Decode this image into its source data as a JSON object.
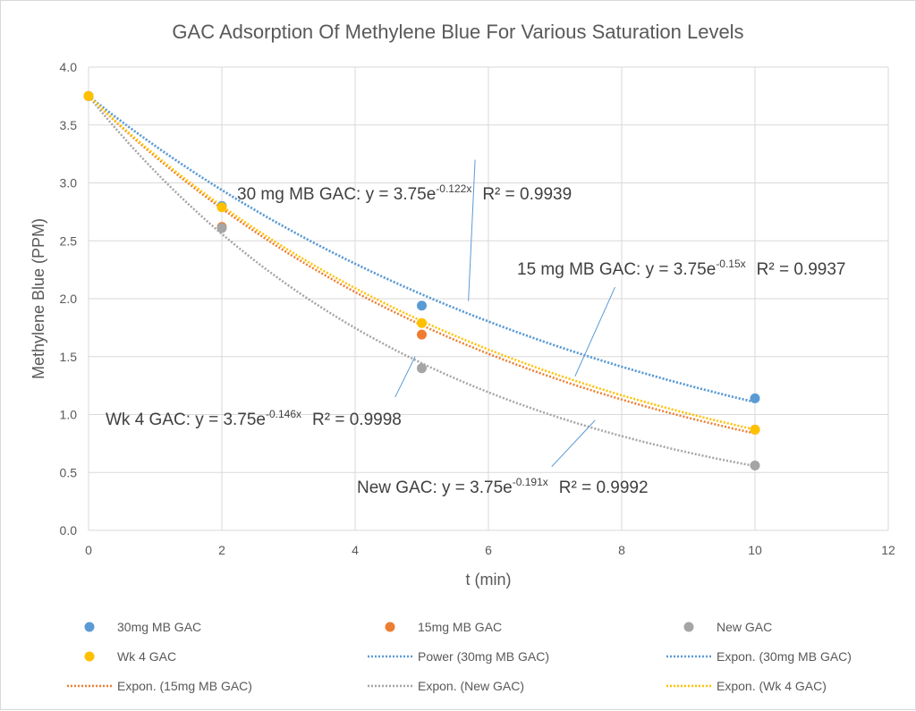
{
  "chart_data": {
    "type": "scatter",
    "title": "GAC Adsorption Of Methylene Blue For Various Saturation Levels",
    "xlabel": "t (min)",
    "ylabel": "Methylene Blue (PPM)",
    "xlim": [
      0,
      12
    ],
    "ylim": [
      0,
      4
    ],
    "x_ticks": [
      "0",
      "2",
      "4",
      "6",
      "8",
      "10",
      "12"
    ],
    "y_ticks": [
      "0.0",
      "0.5",
      "1.0",
      "1.5",
      "2.0",
      "2.5",
      "3.0",
      "3.5",
      "4.0"
    ],
    "grid": true,
    "legend_position": "bottom",
    "series": [
      {
        "name": "30mg MB GAC",
        "color": "#5B9BD5",
        "x": [
          0,
          2,
          5,
          10
        ],
        "y": [
          3.75,
          2.8,
          1.94,
          1.14
        ]
      },
      {
        "name": "15mg MB GAC",
        "color": "#ED7D31",
        "x": [
          0,
          2,
          5,
          10
        ],
        "y": [
          3.75,
          2.62,
          1.69,
          0.87
        ]
      },
      {
        "name": "New GAC",
        "color": "#A5A5A5",
        "x": [
          0,
          2,
          5,
          10
        ],
        "y": [
          3.75,
          2.61,
          1.4,
          0.56
        ]
      },
      {
        "name": "Wk 4 GAC",
        "color": "#FFC000",
        "x": [
          0,
          2,
          5,
          10
        ],
        "y": [
          3.75,
          2.79,
          1.79,
          0.87
        ]
      }
    ],
    "trendlines": [
      {
        "name": "Power (30mg MB GAC)",
        "color": "#5B9BD5",
        "a": 3.75,
        "b": -0.122
      },
      {
        "name": "Expon. (30mg MB GAC)",
        "color": "#5B9BD5",
        "a": 3.75,
        "b": -0.122
      },
      {
        "name": "Expon. (15mg MB GAC)",
        "color": "#ED7D31",
        "a": 3.75,
        "b": -0.15
      },
      {
        "name": "Expon. (New GAC)",
        "color": "#A5A5A5",
        "a": 3.75,
        "b": -0.191
      },
      {
        "name": "Expon. (Wk 4 GAC)",
        "color": "#FFC000",
        "a": 3.75,
        "b": -0.146
      }
    ],
    "annotations": [
      {
        "prefix": "30 mg MB GAC:  y = 3.75e",
        "exp": "-0.122x",
        "r2": "R² = 0.9939"
      },
      {
        "prefix": "15 mg MB GAC:  y = 3.75e",
        "exp": "-0.15x",
        "r2": "R² = 0.9937"
      },
      {
        "prefix": "Wk 4 GAC:  y = 3.75e",
        "exp": "-0.146x",
        "r2": "R² = 0.9998"
      },
      {
        "prefix": "New GAC:  y = 3.75e",
        "exp": "-0.191x",
        "r2": "R² = 0.9992"
      }
    ],
    "legend": [
      {
        "label": "30mg MB GAC",
        "kind": "marker",
        "color": "#5B9BD5"
      },
      {
        "label": "15mg MB GAC",
        "kind": "marker",
        "color": "#ED7D31"
      },
      {
        "label": "New GAC",
        "kind": "marker",
        "color": "#A5A5A5"
      },
      {
        "label": "Wk 4 GAC",
        "kind": "marker",
        "color": "#FFC000"
      },
      {
        "label": "Power (30mg MB GAC)",
        "kind": "line",
        "color": "#5B9BD5"
      },
      {
        "label": "Expon. (30mg MB GAC)",
        "kind": "line",
        "color": "#5B9BD5"
      },
      {
        "label": "Expon. (15mg MB GAC)",
        "kind": "line",
        "color": "#ED7D31"
      },
      {
        "label": "Expon. (New GAC)",
        "kind": "line",
        "color": "#A5A5A5"
      },
      {
        "label": "Expon. (Wk 4 GAC)",
        "kind": "line",
        "color": "#FFC000"
      }
    ]
  }
}
